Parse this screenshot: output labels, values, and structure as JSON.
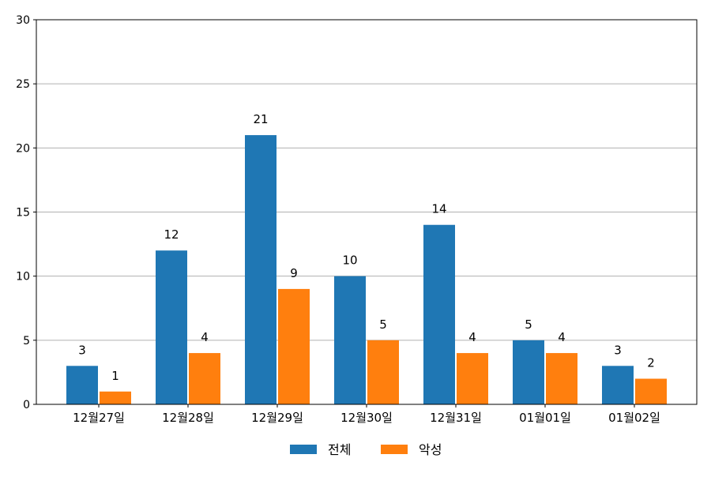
{
  "chart_data": {
    "type": "bar",
    "categories": [
      "12월27일",
      "12월28일",
      "12월29일",
      "12월30일",
      "12월31일",
      "01월01일",
      "01월02일"
    ],
    "series": [
      {
        "name": "전체",
        "color": "#1f77b4",
        "values": [
          3,
          12,
          21,
          10,
          14,
          5,
          3
        ]
      },
      {
        "name": "악성",
        "color": "#ff7f0e",
        "values": [
          1,
          4,
          9,
          5,
          4,
          4,
          2
        ]
      }
    ],
    "title": "",
    "xlabel": "",
    "ylabel": "",
    "ylim": [
      0,
      30
    ],
    "yticks": [
      0,
      5,
      10,
      15,
      20,
      25,
      30
    ],
    "grid": "horizontal",
    "legend_position": "bottom-center",
    "gridline_color": "#b0b0b0"
  }
}
